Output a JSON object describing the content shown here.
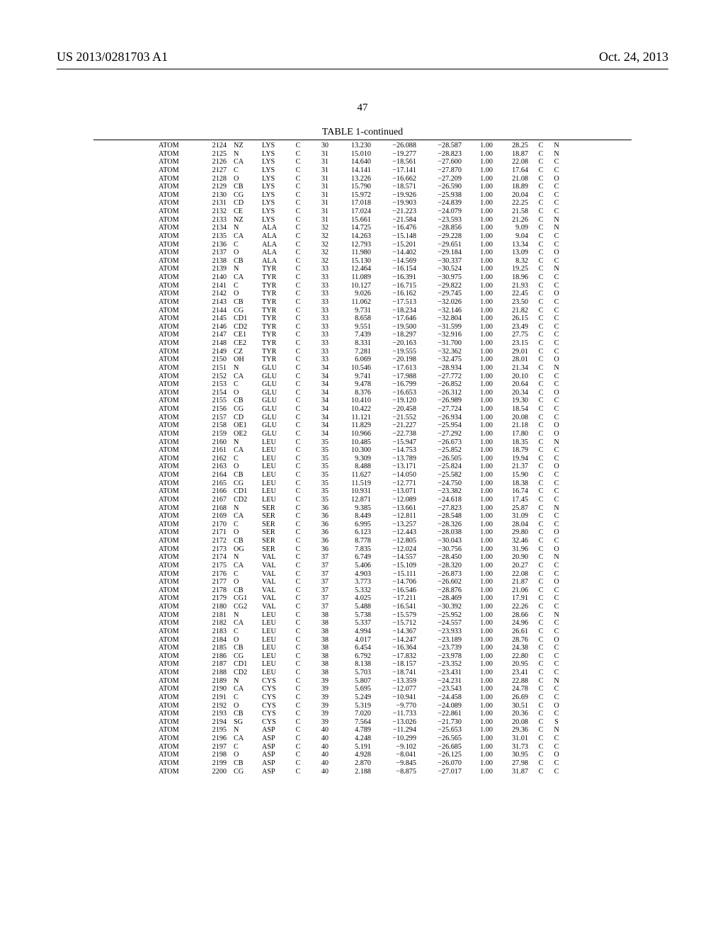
{
  "header": {
    "left": "US 2013/0281703 A1",
    "right": "Oct. 24, 2013",
    "page": "47"
  },
  "table": {
    "caption": "TABLE 1-continued",
    "col_classes": [
      "rec",
      "n1",
      "at",
      "res",
      "ch",
      "rn",
      "x",
      "y",
      "z",
      "oc",
      "bf",
      "e1",
      "e2"
    ],
    "rows": [
      [
        "ATOM",
        "2124",
        "NZ",
        "LYS",
        "C",
        "30",
        "13.230",
        "−26.088",
        "−28.587",
        "1.00",
        "28.25",
        "C",
        "N"
      ],
      [
        "ATOM",
        "2125",
        "N",
        "LYS",
        "C",
        "31",
        "15.010",
        "−19.277",
        "−28.823",
        "1.00",
        "18.87",
        "C",
        "N"
      ],
      [
        "ATOM",
        "2126",
        "CA",
        "LYS",
        "C",
        "31",
        "14.640",
        "−18.561",
        "−27.600",
        "1.00",
        "22.08",
        "C",
        "C"
      ],
      [
        "ATOM",
        "2127",
        "C",
        "LYS",
        "C",
        "31",
        "14.141",
        "−17.141",
        "−27.870",
        "1.00",
        "17.64",
        "C",
        "C"
      ],
      [
        "ATOM",
        "2128",
        "O",
        "LYS",
        "C",
        "31",
        "13.226",
        "−16.662",
        "−27.209",
        "1.00",
        "21.08",
        "C",
        "O"
      ],
      [
        "ATOM",
        "2129",
        "CB",
        "LYS",
        "C",
        "31",
        "15.790",
        "−18.571",
        "−26.590",
        "1.00",
        "18.89",
        "C",
        "C"
      ],
      [
        "ATOM",
        "2130",
        "CG",
        "LYS",
        "C",
        "31",
        "15.972",
        "−19.926",
        "−25.938",
        "1.00",
        "20.04",
        "C",
        "C"
      ],
      [
        "ATOM",
        "2131",
        "CD",
        "LYS",
        "C",
        "31",
        "17.018",
        "−19.903",
        "−24.839",
        "1.00",
        "22.25",
        "C",
        "C"
      ],
      [
        "ATOM",
        "2132",
        "CE",
        "LYS",
        "C",
        "31",
        "17.024",
        "−21.223",
        "−24.079",
        "1.00",
        "21.58",
        "C",
        "C"
      ],
      [
        "ATOM",
        "2133",
        "NZ",
        "LYS",
        "C",
        "31",
        "15.661",
        "−21.584",
        "−23.593",
        "1.00",
        "21.26",
        "C",
        "N"
      ],
      [
        "ATOM",
        "2134",
        "N",
        "ALA",
        "C",
        "32",
        "14.725",
        "−16.476",
        "−28.856",
        "1.00",
        "9.09",
        "C",
        "N"
      ],
      [
        "ATOM",
        "2135",
        "CA",
        "ALA",
        "C",
        "32",
        "14.263",
        "−15.148",
        "−29.228",
        "1.00",
        "9.04",
        "C",
        "C"
      ],
      [
        "ATOM",
        "2136",
        "C",
        "ALA",
        "C",
        "32",
        "12.793",
        "−15.201",
        "−29.651",
        "1.00",
        "13.34",
        "C",
        "C"
      ],
      [
        "ATOM",
        "2137",
        "O",
        "ALA",
        "C",
        "32",
        "11.980",
        "−14.402",
        "−29.184",
        "1.00",
        "13.09",
        "C",
        "O"
      ],
      [
        "ATOM",
        "2138",
        "CB",
        "ALA",
        "C",
        "32",
        "15.130",
        "−14.569",
        "−30.337",
        "1.00",
        "8.32",
        "C",
        "C"
      ],
      [
        "ATOM",
        "2139",
        "N",
        "TYR",
        "C",
        "33",
        "12.464",
        "−16.154",
        "−30.524",
        "1.00",
        "19.25",
        "C",
        "N"
      ],
      [
        "ATOM",
        "2140",
        "CA",
        "TYR",
        "C",
        "33",
        "11.089",
        "−16.391",
        "−30.975",
        "1.00",
        "18.96",
        "C",
        "C"
      ],
      [
        "ATOM",
        "2141",
        "C",
        "TYR",
        "C",
        "33",
        "10.127",
        "−16.715",
        "−29.822",
        "1.00",
        "21.93",
        "C",
        "C"
      ],
      [
        "ATOM",
        "2142",
        "O",
        "TYR",
        "C",
        "33",
        "9.026",
        "−16.162",
        "−29.745",
        "1.00",
        "22.45",
        "C",
        "O"
      ],
      [
        "ATOM",
        "2143",
        "CB",
        "TYR",
        "C",
        "33",
        "11.062",
        "−17.513",
        "−32.026",
        "1.00",
        "23.50",
        "C",
        "C"
      ],
      [
        "ATOM",
        "2144",
        "CG",
        "TYR",
        "C",
        "33",
        "9.731",
        "−18.234",
        "−32.146",
        "1.00",
        "21.82",
        "C",
        "C"
      ],
      [
        "ATOM",
        "2145",
        "CD1",
        "TYR",
        "C",
        "33",
        "8.658",
        "−17.646",
        "−32.804",
        "1.00",
        "26.15",
        "C",
        "C"
      ],
      [
        "ATOM",
        "2146",
        "CD2",
        "TYR",
        "C",
        "33",
        "9.551",
        "−19.500",
        "−31.599",
        "1.00",
        "23.49",
        "C",
        "C"
      ],
      [
        "ATOM",
        "2147",
        "CE1",
        "TYR",
        "C",
        "33",
        "7.439",
        "−18.297",
        "−32.916",
        "1.00",
        "27.75",
        "C",
        "C"
      ],
      [
        "ATOM",
        "2148",
        "CE2",
        "TYR",
        "C",
        "33",
        "8.331",
        "−20.163",
        "−31.700",
        "1.00",
        "23.15",
        "C",
        "C"
      ],
      [
        "ATOM",
        "2149",
        "CZ",
        "TYR",
        "C",
        "33",
        "7.281",
        "−19.555",
        "−32.362",
        "1.00",
        "29.01",
        "C",
        "C"
      ],
      [
        "ATOM",
        "2150",
        "OH",
        "TYR",
        "C",
        "33",
        "6.069",
        "−20.198",
        "−32.475",
        "1.00",
        "28.01",
        "C",
        "O"
      ],
      [
        "ATOM",
        "2151",
        "N",
        "GLU",
        "C",
        "34",
        "10.546",
        "−17.613",
        "−28.934",
        "1.00",
        "21.34",
        "C",
        "N"
      ],
      [
        "ATOM",
        "2152",
        "CA",
        "GLU",
        "C",
        "34",
        "9.741",
        "−17.988",
        "−27.772",
        "1.00",
        "20.10",
        "C",
        "C"
      ],
      [
        "ATOM",
        "2153",
        "C",
        "GLU",
        "C",
        "34",
        "9.478",
        "−16.799",
        "−26.852",
        "1.00",
        "20.64",
        "C",
        "C"
      ],
      [
        "ATOM",
        "2154",
        "O",
        "GLU",
        "C",
        "34",
        "8.376",
        "−16.653",
        "−26.312",
        "1.00",
        "20.34",
        "C",
        "O"
      ],
      [
        "ATOM",
        "2155",
        "CB",
        "GLU",
        "C",
        "34",
        "10.410",
        "−19.120",
        "−26.989",
        "1.00",
        "19.30",
        "C",
        "C"
      ],
      [
        "ATOM",
        "2156",
        "CG",
        "GLU",
        "C",
        "34",
        "10.422",
        "−20.458",
        "−27.724",
        "1.00",
        "18.54",
        "C",
        "C"
      ],
      [
        "ATOM",
        "2157",
        "CD",
        "GLU",
        "C",
        "34",
        "11.121",
        "−21.552",
        "−26.934",
        "1.00",
        "20.08",
        "C",
        "C"
      ],
      [
        "ATOM",
        "2158",
        "OE1",
        "GLU",
        "C",
        "34",
        "11.829",
        "−21.227",
        "−25.954",
        "1.00",
        "21.18",
        "C",
        "O"
      ],
      [
        "ATOM",
        "2159",
        "OE2",
        "GLU",
        "C",
        "34",
        "10.966",
        "−22.738",
        "−27.292",
        "1.00",
        "17.80",
        "C",
        "O"
      ],
      [
        "ATOM",
        "2160",
        "N",
        "LEU",
        "C",
        "35",
        "10.485",
        "−15.947",
        "−26.673",
        "1.00",
        "18.35",
        "C",
        "N"
      ],
      [
        "ATOM",
        "2161",
        "CA",
        "LEU",
        "C",
        "35",
        "10.300",
        "−14.753",
        "−25.852",
        "1.00",
        "18.79",
        "C",
        "C"
      ],
      [
        "ATOM",
        "2162",
        "C",
        "LEU",
        "C",
        "35",
        "9.309",
        "−13.789",
        "−26.505",
        "1.00",
        "19.94",
        "C",
        "C"
      ],
      [
        "ATOM",
        "2163",
        "O",
        "LEU",
        "C",
        "35",
        "8.488",
        "−13.171",
        "−25.824",
        "1.00",
        "21.37",
        "C",
        "O"
      ],
      [
        "ATOM",
        "2164",
        "CB",
        "LEU",
        "C",
        "35",
        "11.627",
        "−14.050",
        "−25.582",
        "1.00",
        "15.90",
        "C",
        "C"
      ],
      [
        "ATOM",
        "2165",
        "CG",
        "LEU",
        "C",
        "35",
        "11.519",
        "−12.771",
        "−24.750",
        "1.00",
        "18.38",
        "C",
        "C"
      ],
      [
        "ATOM",
        "2166",
        "CD1",
        "LEU",
        "C",
        "35",
        "10.931",
        "−13.071",
        "−23.382",
        "1.00",
        "16.74",
        "C",
        "C"
      ],
      [
        "ATOM",
        "2167",
        "CD2",
        "LEU",
        "C",
        "35",
        "12.871",
        "−12.089",
        "−24.618",
        "1.00",
        "17.45",
        "C",
        "C"
      ],
      [
        "ATOM",
        "2168",
        "N",
        "SER",
        "C",
        "36",
        "9.385",
        "−13.661",
        "−27.823",
        "1.00",
        "25.87",
        "C",
        "N"
      ],
      [
        "ATOM",
        "2169",
        "CA",
        "SER",
        "C",
        "36",
        "8.449",
        "−12.811",
        "−28.548",
        "1.00",
        "31.09",
        "C",
        "C"
      ],
      [
        "ATOM",
        "2170",
        "C",
        "SER",
        "C",
        "36",
        "6.995",
        "−13.257",
        "−28.326",
        "1.00",
        "28.04",
        "C",
        "C"
      ],
      [
        "ATOM",
        "2171",
        "O",
        "SER",
        "C",
        "36",
        "6.123",
        "−12.443",
        "−28.038",
        "1.00",
        "29.80",
        "C",
        "O"
      ],
      [
        "ATOM",
        "2172",
        "CB",
        "SER",
        "C",
        "36",
        "8.778",
        "−12.805",
        "−30.043",
        "1.00",
        "32.46",
        "C",
        "C"
      ],
      [
        "ATOM",
        "2173",
        "OG",
        "SER",
        "C",
        "36",
        "7.835",
        "−12.024",
        "−30.756",
        "1.00",
        "31.96",
        "C",
        "O"
      ],
      [
        "ATOM",
        "2174",
        "N",
        "VAL",
        "C",
        "37",
        "6.749",
        "−14.557",
        "−28.450",
        "1.00",
        "20.90",
        "C",
        "N"
      ],
      [
        "ATOM",
        "2175",
        "CA",
        "VAL",
        "C",
        "37",
        "5.406",
        "−15.109",
        "−28.320",
        "1.00",
        "20.27",
        "C",
        "C"
      ],
      [
        "ATOM",
        "2176",
        "C",
        "VAL",
        "C",
        "37",
        "4.903",
        "−15.111",
        "−26.873",
        "1.00",
        "22.08",
        "C",
        "C"
      ],
      [
        "ATOM",
        "2177",
        "O",
        "VAL",
        "C",
        "37",
        "3.773",
        "−14.706",
        "−26.602",
        "1.00",
        "21.87",
        "C",
        "O"
      ],
      [
        "ATOM",
        "2178",
        "CB",
        "VAL",
        "C",
        "37",
        "5.332",
        "−16.546",
        "−28.876",
        "1.00",
        "21.06",
        "C",
        "C"
      ],
      [
        "ATOM",
        "2179",
        "CG1",
        "VAL",
        "C",
        "37",
        "4.025",
        "−17.211",
        "−28.469",
        "1.00",
        "17.91",
        "C",
        "C"
      ],
      [
        "ATOM",
        "2180",
        "CG2",
        "VAL",
        "C",
        "37",
        "5.488",
        "−16.541",
        "−30.392",
        "1.00",
        "22.26",
        "C",
        "C"
      ],
      [
        "ATOM",
        "2181",
        "N",
        "LEU",
        "C",
        "38",
        "5.738",
        "−15.579",
        "−25.952",
        "1.00",
        "28.66",
        "C",
        "N"
      ],
      [
        "ATOM",
        "2182",
        "CA",
        "LEU",
        "C",
        "38",
        "5.337",
        "−15.712",
        "−24.557",
        "1.00",
        "24.96",
        "C",
        "C"
      ],
      [
        "ATOM",
        "2183",
        "C",
        "LEU",
        "C",
        "38",
        "4.994",
        "−14.367",
        "−23.933",
        "1.00",
        "26.61",
        "C",
        "C"
      ],
      [
        "ATOM",
        "2184",
        "O",
        "LEU",
        "C",
        "38",
        "4.017",
        "−14.247",
        "−23.189",
        "1.00",
        "28.76",
        "C",
        "O"
      ],
      [
        "ATOM",
        "2185",
        "CB",
        "LEU",
        "C",
        "38",
        "6.454",
        "−16.364",
        "−23.739",
        "1.00",
        "24.38",
        "C",
        "C"
      ],
      [
        "ATOM",
        "2186",
        "CG",
        "LEU",
        "C",
        "38",
        "6.792",
        "−17.832",
        "−23.978",
        "1.00",
        "22.80",
        "C",
        "C"
      ],
      [
        "ATOM",
        "2187",
        "CD1",
        "LEU",
        "C",
        "38",
        "8.138",
        "−18.157",
        "−23.352",
        "1.00",
        "20.95",
        "C",
        "C"
      ],
      [
        "ATOM",
        "2188",
        "CD2",
        "LEU",
        "C",
        "38",
        "5.703",
        "−18.741",
        "−23.431",
        "1.00",
        "23.41",
        "C",
        "C"
      ],
      [
        "ATOM",
        "2189",
        "N",
        "CYS",
        "C",
        "39",
        "5.807",
        "−13.359",
        "−24.231",
        "1.00",
        "22.88",
        "C",
        "N"
      ],
      [
        "ATOM",
        "2190",
        "CA",
        "CYS",
        "C",
        "39",
        "5.695",
        "−12.077",
        "−23.543",
        "1.00",
        "24.78",
        "C",
        "C"
      ],
      [
        "ATOM",
        "2191",
        "C",
        "CYS",
        "C",
        "39",
        "5.249",
        "−10.941",
        "−24.458",
        "1.00",
        "26.69",
        "C",
        "C"
      ],
      [
        "ATOM",
        "2192",
        "O",
        "CYS",
        "C",
        "39",
        "5.319",
        "−9.770",
        "−24.089",
        "1.00",
        "30.51",
        "C",
        "O"
      ],
      [
        "ATOM",
        "2193",
        "CB",
        "CYS",
        "C",
        "39",
        "7.020",
        "−11.733",
        "−22.861",
        "1.00",
        "20.36",
        "C",
        "C"
      ],
      [
        "ATOM",
        "2194",
        "SG",
        "CYS",
        "C",
        "39",
        "7.564",
        "−13.026",
        "−21.730",
        "1.00",
        "20.08",
        "C",
        "S"
      ],
      [
        "ATOM",
        "2195",
        "N",
        "ASP",
        "C",
        "40",
        "4.789",
        "−11.294",
        "−25.653",
        "1.00",
        "29.36",
        "C",
        "N"
      ],
      [
        "ATOM",
        "2196",
        "CA",
        "ASP",
        "C",
        "40",
        "4.248",
        "−10.299",
        "−26.565",
        "1.00",
        "31.01",
        "C",
        "C"
      ],
      [
        "ATOM",
        "2197",
        "C",
        "ASP",
        "C",
        "40",
        "5.191",
        "−9.102",
        "−26.685",
        "1.00",
        "31.73",
        "C",
        "C"
      ],
      [
        "ATOM",
        "2198",
        "O",
        "ASP",
        "C",
        "40",
        "4.928",
        "−8.041",
        "−26.125",
        "1.00",
        "30.95",
        "C",
        "O"
      ],
      [
        "ATOM",
        "2199",
        "CB",
        "ASP",
        "C",
        "40",
        "2.870",
        "−9.845",
        "−26.070",
        "1.00",
        "27.98",
        "C",
        "C"
      ],
      [
        "ATOM",
        "2200",
        "CG",
        "ASP",
        "C",
        "40",
        "2.188",
        "−8.875",
        "−27.017",
        "1.00",
        "31.87",
        "C",
        "C"
      ]
    ]
  }
}
